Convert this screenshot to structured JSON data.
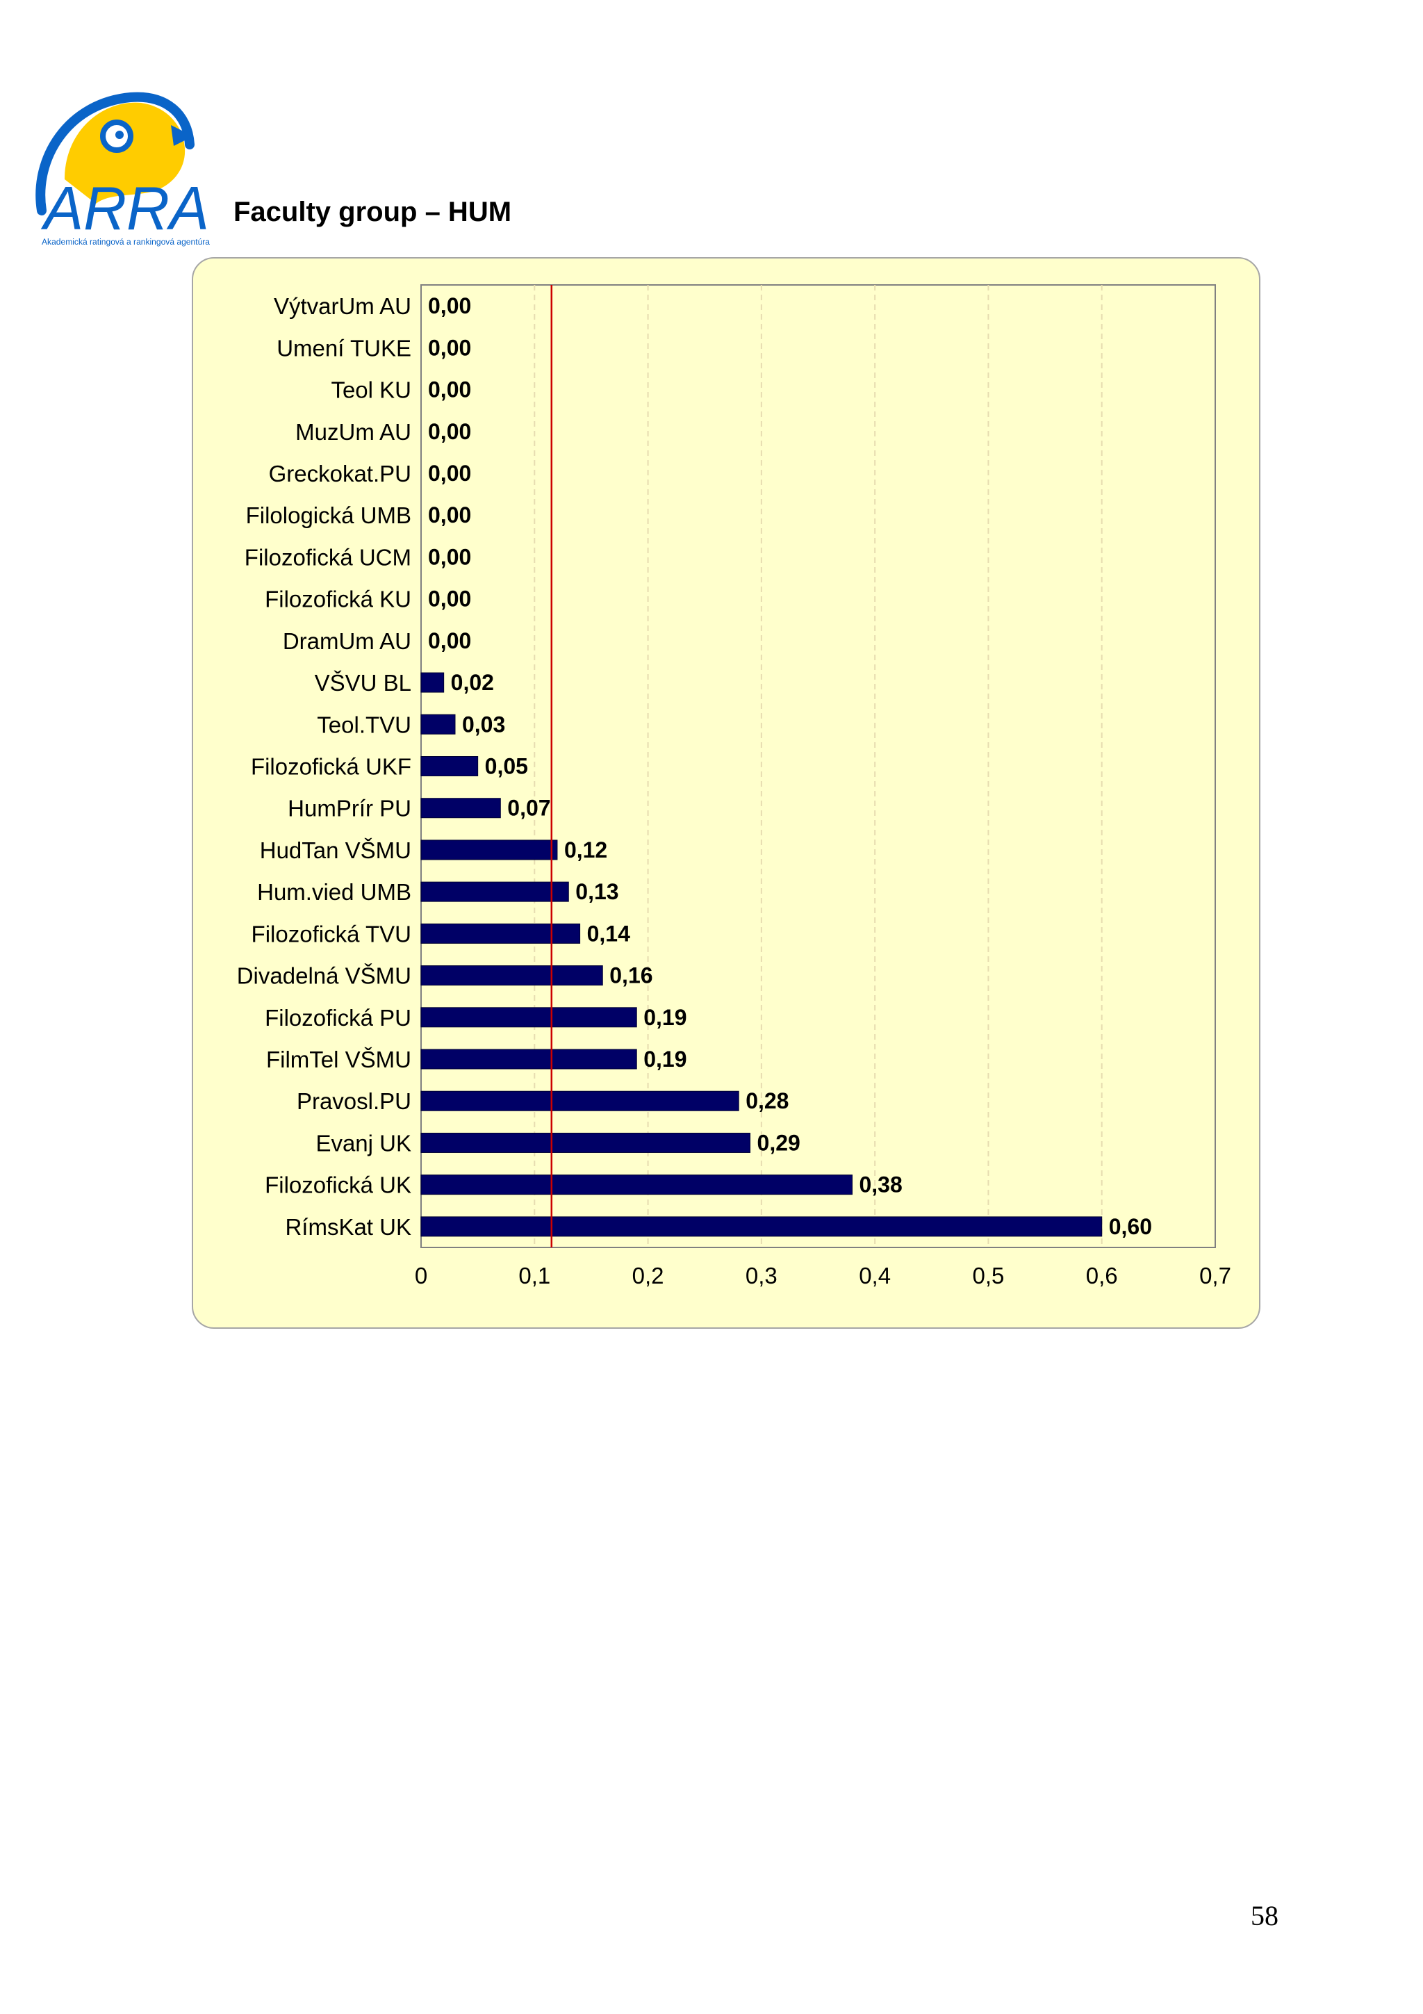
{
  "header": {
    "logo_text": "ARRA",
    "logo_subtitle": "Akademická ratingová a rankingová agentúra",
    "title": "Faculty group – HUM"
  },
  "colors": {
    "bar_fill": "#000066",
    "plot_background": "#ffffcc",
    "reference_line": "#cc0000",
    "logo_blue": "#0a64c8",
    "logo_yellow": "#ffcc00"
  },
  "chart_data": {
    "type": "bar",
    "orientation": "horizontal",
    "categories": [
      "VýtvarUm AU",
      "Umení TUKE",
      "Teol KU",
      "MuzUm AU",
      "Greckokat.PU",
      "Filologická UMB",
      "Filozofická UCM",
      "Filozofická KU",
      "DramUm AU",
      "VŠVU BL",
      "Teol.TVU",
      "Filozofická UKF",
      "HumPrír PU",
      "HudTan VŠMU",
      "Hum.vied UMB",
      "Filozofická TVU",
      "Divadelná VŠMU",
      "Filozofická PU",
      "FilmTel VŠMU",
      "Pravosl.PU",
      "Evanj UK",
      "Filozofická UK",
      "RímsKat UK"
    ],
    "values": [
      0.0,
      0.0,
      0.0,
      0.0,
      0.0,
      0.0,
      0.0,
      0.0,
      0.0,
      0.02,
      0.03,
      0.05,
      0.07,
      0.12,
      0.13,
      0.14,
      0.16,
      0.19,
      0.19,
      0.28,
      0.29,
      0.38,
      0.6
    ],
    "value_labels": [
      "0,00",
      "0,00",
      "0,00",
      "0,00",
      "0,00",
      "0,00",
      "0,00",
      "0,00",
      "0,00",
      "0,02",
      "0,03",
      "0,05",
      "0,07",
      "0,12",
      "0,13",
      "0,14",
      "0,16",
      "0,19",
      "0,19",
      "0,28",
      "0,29",
      "0,38",
      "0,60"
    ],
    "xlim": [
      0,
      0.7
    ],
    "x_ticks": [
      0,
      0.1,
      0.2,
      0.3,
      0.4,
      0.5,
      0.6,
      0.7
    ],
    "x_tick_labels": [
      "0",
      "0,1",
      "0,2",
      "0,3",
      "0,4",
      "0,5",
      "0,6",
      "0,7"
    ],
    "reference_line_x": 0.115,
    "grid": "vertical dashed",
    "legend": "none",
    "title": "",
    "xlabel": "",
    "ylabel": ""
  },
  "footer": {
    "page_number": "58"
  }
}
